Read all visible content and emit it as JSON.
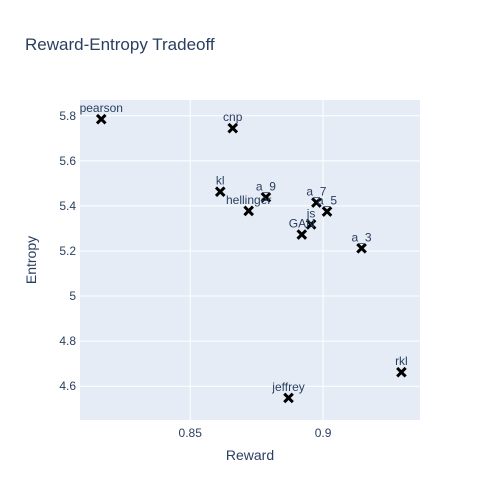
{
  "chart_data": {
    "type": "scatter",
    "title": "Reward-Entropy Tradeoff",
    "xlabel": "Reward",
    "ylabel": "Entropy",
    "xlim": [
      0.8085,
      0.9365
    ],
    "ylim": [
      4.45,
      5.87
    ],
    "xticks": [
      {
        "value": 0.85,
        "label": "0.85"
      },
      {
        "value": 0.9,
        "label": "0.9"
      }
    ],
    "yticks": [
      {
        "value": 4.6,
        "label": "4.6"
      },
      {
        "value": 4.8,
        "label": "4.8"
      },
      {
        "value": 5.0,
        "label": "5"
      },
      {
        "value": 5.2,
        "label": "5.2"
      },
      {
        "value": 5.4,
        "label": "5.4"
      },
      {
        "value": 5.6,
        "label": "5.6"
      },
      {
        "value": 5.8,
        "label": "5.8"
      }
    ],
    "grid": true,
    "marker": "x",
    "marker_color": "#000000",
    "plot_bgcolor": "#e5ecf6",
    "points": [
      {
        "label": "pearson",
        "x": 0.8165,
        "y": 5.785
      },
      {
        "label": "cnp",
        "x": 0.866,
        "y": 5.745
      },
      {
        "label": "kl",
        "x": 0.8613,
        "y": 5.463
      },
      {
        "label": "a_9",
        "x": 0.8785,
        "y": 5.438
      },
      {
        "label": "hellinger",
        "x": 0.872,
        "y": 5.378
      },
      {
        "label": "a_7",
        "x": 0.8975,
        "y": 5.415
      },
      {
        "label": "a_5",
        "x": 0.9015,
        "y": 5.375
      },
      {
        "label": "js",
        "x": 0.8955,
        "y": 5.318
      },
      {
        "label": "GAN",
        "x": 0.892,
        "y": 5.273
      },
      {
        "label": "a_3",
        "x": 0.9145,
        "y": 5.212
      },
      {
        "label": "rkl",
        "x": 0.9295,
        "y": 4.662
      },
      {
        "label": "jeffrey",
        "x": 0.887,
        "y": 4.548
      }
    ]
  }
}
